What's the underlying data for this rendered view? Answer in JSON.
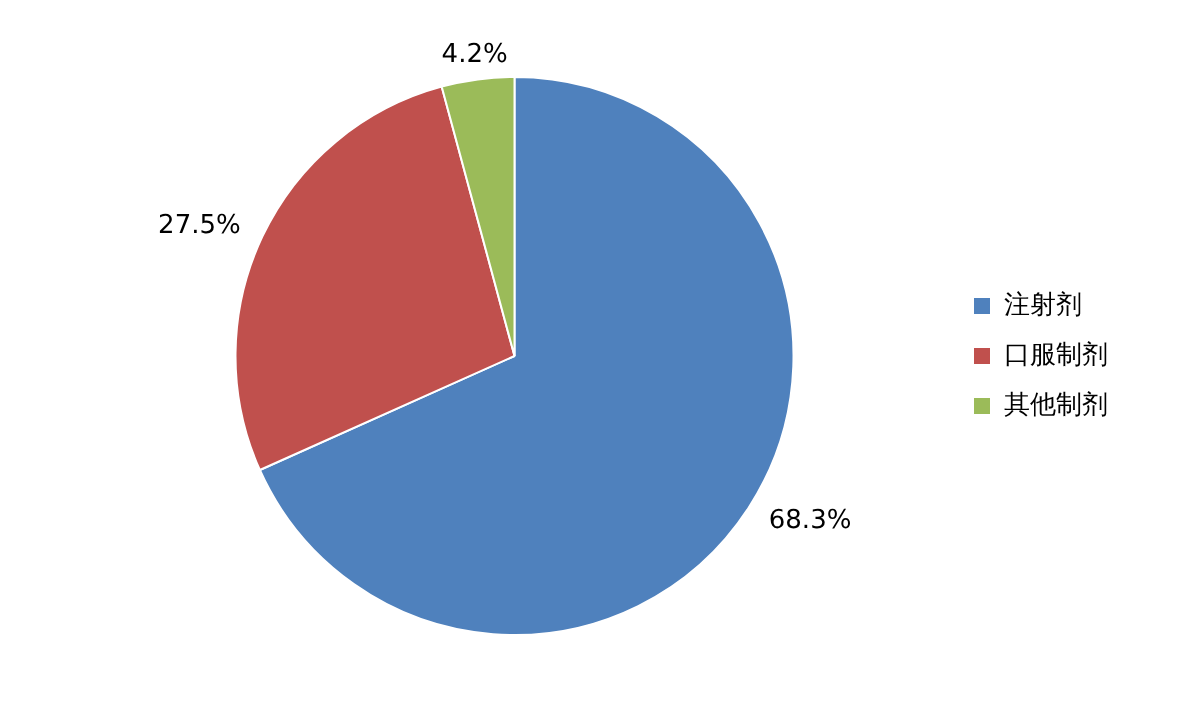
{
  "chart_data": {
    "type": "pie",
    "categories": [
      "注射剂",
      "口服制剂",
      "其他制剂"
    ],
    "values": [
      68.3,
      27.5,
      4.2
    ],
    "colors": [
      "#4f81bd",
      "#c0504d",
      "#9bbb59"
    ],
    "value_labels": [
      "68.3%",
      "27.5%",
      "4.2%"
    ],
    "legend": "right"
  }
}
